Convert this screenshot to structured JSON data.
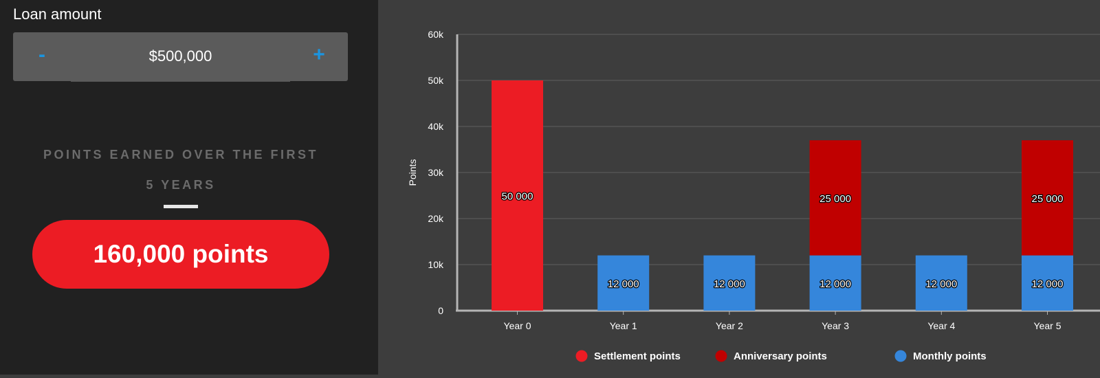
{
  "calculator": {
    "loan_label": "Loan amount",
    "minus_label": "-",
    "plus_label": "+",
    "loan_value": "$500,000",
    "caption_line1": "POINTS EARNED OVER THE FIRST",
    "caption_line2": "5 YEARS",
    "total_points": "160,000 points"
  },
  "colors": {
    "settlement": "#ec1c24",
    "anniversary": "#c00000",
    "monthly": "#3586db",
    "accent": "#1b95e0"
  },
  "chart_data": {
    "type": "bar",
    "stacked": true,
    "categories": [
      "Year 0",
      "Year 1",
      "Year 2",
      "Year 3",
      "Year 4",
      "Year 5"
    ],
    "series": [
      {
        "name": "Settlement points",
        "color": "#ec1c24",
        "values": [
          50000,
          0,
          0,
          0,
          0,
          0
        ],
        "labels": [
          "50 000",
          "",
          "",
          "",
          "",
          ""
        ]
      },
      {
        "name": "Anniversary points",
        "color": "#c00000",
        "values": [
          0,
          0,
          0,
          25000,
          0,
          25000
        ],
        "labels": [
          "",
          "",
          "",
          "25 000",
          "",
          "25 000"
        ]
      },
      {
        "name": "Monthly points",
        "color": "#3586db",
        "values": [
          0,
          12000,
          12000,
          12000,
          12000,
          12000
        ],
        "labels": [
          "",
          "12 000",
          "12 000",
          "12 000",
          "12 000",
          "12 000"
        ]
      }
    ],
    "stack_order": [
      "Monthly points",
      "Settlement points",
      "Anniversary points"
    ],
    "ylabel": "Points",
    "ylim": [
      0,
      60000
    ],
    "yticks": [
      0,
      10000,
      20000,
      30000,
      40000,
      50000,
      60000
    ],
    "ytick_labels": [
      "0",
      "10k",
      "20k",
      "30k",
      "40k",
      "50k",
      "60k"
    ],
    "grid": true,
    "legend_position": "bottom"
  }
}
